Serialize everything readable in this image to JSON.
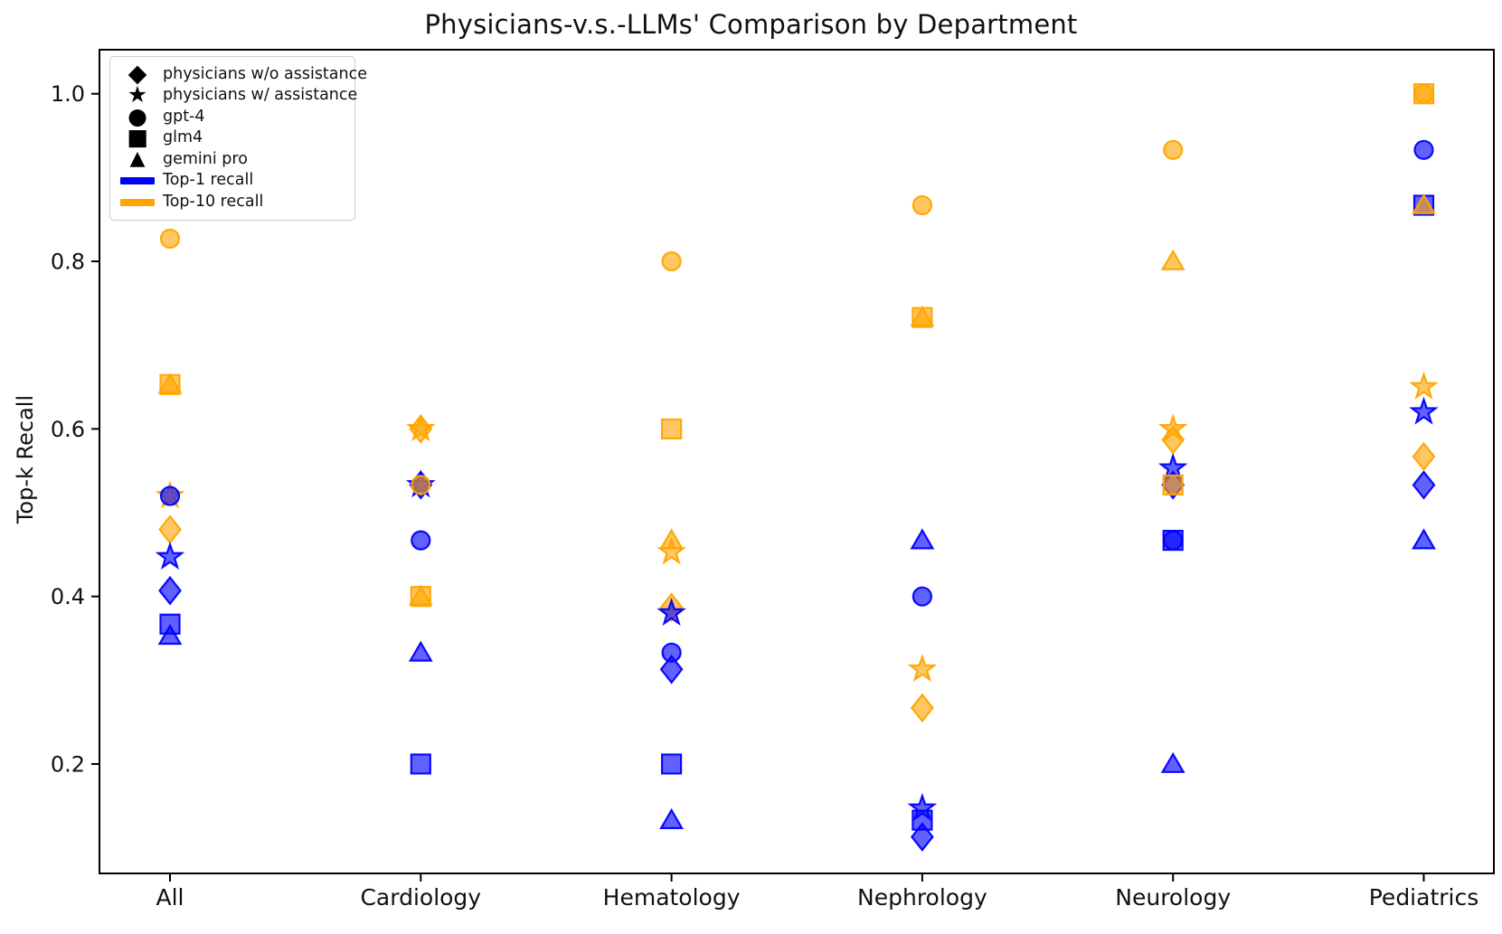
{
  "title": "Physicians-v.s.-LLMs' Comparison by Department",
  "ylabel": "Top-k Recall",
  "legend": {
    "items": [
      {
        "icon": "diamond",
        "label": "physicians w/o assistance"
      },
      {
        "icon": "star",
        "label": "physicians w/ assistance"
      },
      {
        "icon": "circle",
        "label": "gpt-4"
      },
      {
        "icon": "square",
        "label": "glm4"
      },
      {
        "icon": "triangle",
        "label": "gemini pro"
      },
      {
        "icon": "line",
        "color": "#0000ff",
        "label": "Top-1 recall"
      },
      {
        "icon": "line",
        "color": "#ffa500",
        "label": "Top-10 recall"
      }
    ]
  },
  "chart_data": {
    "type": "scatter",
    "title": "Physicians-v.s.-LLMs' Comparison by Department",
    "xlabel": "",
    "ylabel": "Top-k Recall",
    "categories": [
      "All",
      "Cardiology",
      "Hematology",
      "Nephrology",
      "Neurology",
      "Pediatrics"
    ],
    "y_ticks": [
      1.0,
      0.8,
      0.6,
      0.4,
      0.2
    ],
    "ylim": [
      0.07,
      1.05
    ],
    "grid": false,
    "legend_position": "upper left",
    "colors": {
      "top1": "#0000ff",
      "top10": "#ffa500"
    },
    "series": [
      {
        "name": "physicians w/o assistance",
        "marker": "diamond",
        "top1": [
          0.407,
          0.533,
          0.313,
          0.113,
          0.533,
          0.533
        ],
        "top10": [
          0.48,
          0.6,
          0.387,
          0.267,
          0.587,
          0.567
        ]
      },
      {
        "name": "physicians w/ assistance",
        "marker": "star",
        "top1": [
          0.447,
          0.533,
          0.38,
          0.147,
          0.553,
          0.62
        ],
        "top10": [
          0.52,
          0.6,
          0.453,
          0.313,
          0.6,
          0.65
        ]
      },
      {
        "name": "gpt-4",
        "marker": "circle",
        "top1": [
          0.52,
          0.467,
          0.333,
          0.4,
          0.467,
          0.933
        ],
        "top10": [
          0.827,
          0.533,
          0.8,
          0.867,
          0.933,
          1.0
        ]
      },
      {
        "name": "glm4",
        "marker": "square",
        "top1": [
          0.367,
          0.2,
          0.2,
          0.133,
          0.467,
          0.867
        ],
        "top10": [
          0.653,
          0.4,
          0.6,
          0.733,
          0.533,
          1.0
        ]
      },
      {
        "name": "gemini pro",
        "marker": "triangle",
        "top1": [
          0.353,
          0.333,
          0.133,
          0.467,
          0.2,
          0.467
        ],
        "top10": [
          0.653,
          0.4,
          0.467,
          0.733,
          0.8,
          0.867
        ]
      }
    ]
  }
}
